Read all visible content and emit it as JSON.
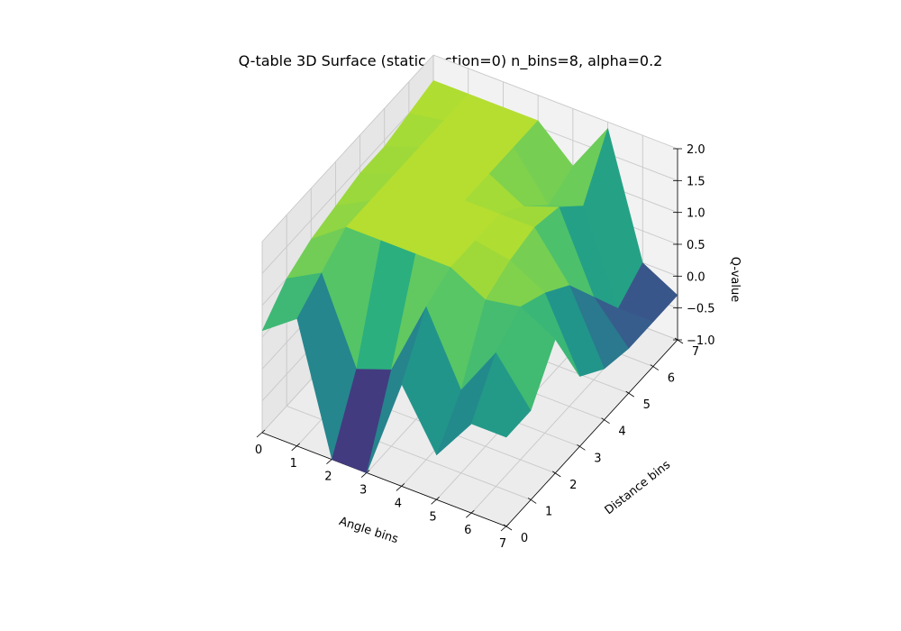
{
  "chart_data": {
    "type": "surface3d",
    "title": "Q-table 3D Surface (static, action=0) n_bins=8, alpha=0.2",
    "xlabel": "Angle bins",
    "ylabel": "Distance bins",
    "zlabel": "Q-value",
    "x_ticks": [
      "0",
      "1",
      "2",
      "3",
      "4",
      "5",
      "6",
      "7"
    ],
    "y_ticks": [
      "0",
      "1",
      "2",
      "3",
      "4",
      "5",
      "6",
      "7"
    ],
    "z_ticks": [
      "−1.0",
      "−0.5",
      "0.0",
      "0.5",
      "1.0",
      "1.5",
      "2.0"
    ],
    "xlim": [
      0,
      7
    ],
    "ylim": [
      0,
      7
    ],
    "zlim": [
      -1.0,
      2.0
    ],
    "colormap": "viridis",
    "grid": true,
    "x": [
      0,
      1,
      2,
      3,
      4,
      5,
      6,
      7
    ],
    "y": [
      0,
      1,
      2,
      3,
      4,
      5,
      6,
      7
    ],
    "z": [
      [
        0.6,
        1.0,
        1.2,
        1.3,
        1.4,
        1.4,
        1.5,
        1.6
      ],
      [
        1.0,
        1.3,
        1.6,
        1.6,
        1.6,
        1.6,
        1.6,
        1.6
      ],
      [
        -1.0,
        0.0,
        1.6,
        1.6,
        1.6,
        1.6,
        1.6,
        1.6
      ],
      [
        -1.0,
        0.2,
        1.6,
        1.6,
        1.6,
        1.6,
        1.6,
        1.6
      ],
      [
        0.6,
        1.4,
        1.6,
        1.6,
        1.6,
        1.3,
        0.9,
        1.1
      ],
      [
        -0.3,
        0.3,
        1.3,
        1.5,
        1.6,
        1.5,
        1.1,
        1.9
      ],
      [
        0.4,
        1.1,
        1.4,
        1.2,
        0.9,
        0.3,
        -0.3,
        0.0
      ],
      [
        0.4,
        0.4,
        1.1,
        0.1,
        -0.2,
        -0.3,
        -0.3,
        -0.3
      ]
    ]
  }
}
